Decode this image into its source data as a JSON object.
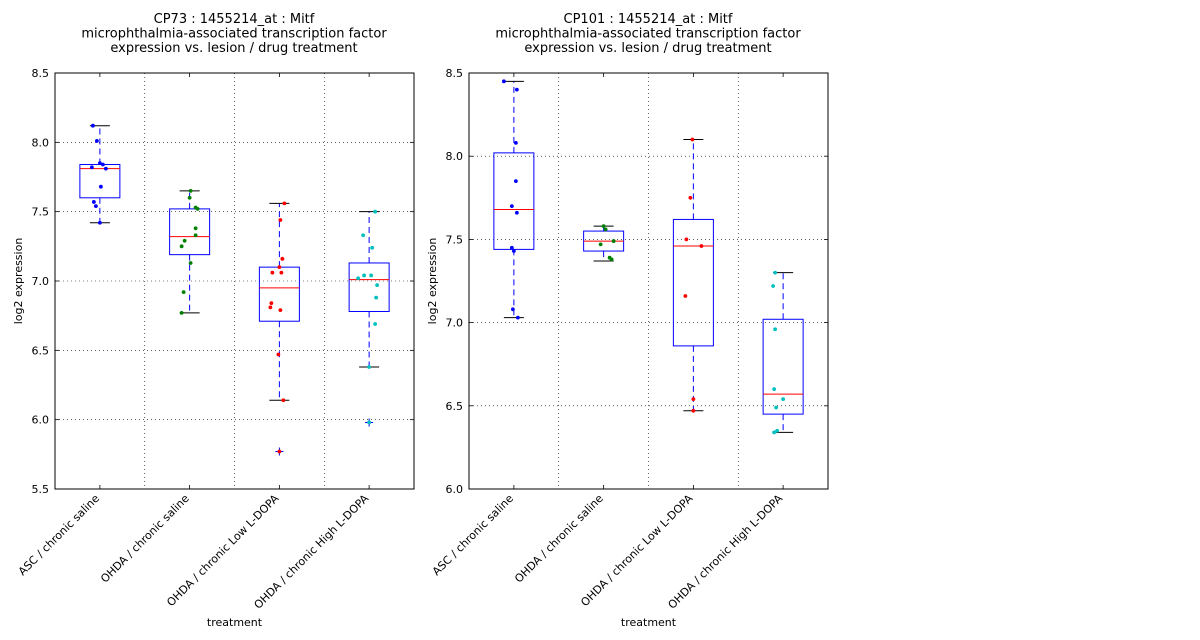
{
  "chart_data": [
    {
      "type": "box",
      "title_lines": [
        "CP73 : 1455214_at : Mitf",
        "microphthalmia-associated transcription factor",
        "expression vs. lesion / drug treatment"
      ],
      "xlabel": "treatment",
      "ylabel": "log2 expression",
      "ylim": [
        5.5,
        8.5
      ],
      "yticks": [
        "5.5",
        "6.0",
        "6.5",
        "7.0",
        "7.5",
        "8.0",
        "8.5"
      ],
      "grid": true,
      "categories": [
        "ASC / chronic saline",
        "OHDA / chronic saline",
        "OHDA / chronic Low L-DOPA",
        "OHDA / chronic High L-DOPA"
      ],
      "series": [
        {
          "color": "#0000ff",
          "box": {
            "whisker_low": 7.42,
            "q1": 7.6,
            "median": 7.81,
            "q3": 7.84,
            "whisker_high": 8.12
          },
          "outliers": [],
          "points": [
            8.12,
            8.01,
            7.85,
            7.84,
            7.82,
            7.81,
            7.68,
            7.57,
            7.54,
            7.42
          ]
        },
        {
          "color": "#008000",
          "box": {
            "whisker_low": 6.77,
            "q1": 7.19,
            "median": 7.32,
            "q3": 7.52,
            "whisker_high": 7.65
          },
          "outliers": [],
          "points": [
            7.65,
            7.6,
            7.53,
            7.52,
            7.38,
            7.33,
            7.29,
            7.25,
            7.13,
            6.92,
            6.77
          ]
        },
        {
          "color": "#ff0000",
          "box": {
            "whisker_low": 6.14,
            "q1": 6.71,
            "median": 6.95,
            "q3": 7.1,
            "whisker_high": 7.56
          },
          "outliers": [
            5.77
          ],
          "points": [
            7.56,
            7.44,
            7.16,
            7.1,
            7.06,
            7.06,
            6.84,
            6.81,
            6.79,
            6.47,
            6.14,
            5.77
          ]
        },
        {
          "color": "#00bfbf",
          "box": {
            "whisker_low": 6.38,
            "q1": 6.78,
            "median": 7.01,
            "q3": 7.13,
            "whisker_high": 7.5
          },
          "outliers": [
            5.98
          ],
          "points": [
            7.5,
            7.33,
            7.24,
            7.04,
            7.04,
            7.02,
            6.97,
            6.88,
            6.69,
            6.38,
            5.98
          ]
        }
      ]
    },
    {
      "type": "box",
      "title_lines": [
        "CP101 : 1455214_at : Mitf",
        "microphthalmia-associated transcription factor",
        "expression vs. lesion / drug treatment"
      ],
      "xlabel": "treatment",
      "ylabel": "log2 expression",
      "ylim": [
        6.0,
        8.5
      ],
      "yticks": [
        "6.0",
        "6.5",
        "7.0",
        "7.5",
        "8.0",
        "8.5"
      ],
      "grid": true,
      "categories": [
        "ASC / chronic saline",
        "OHDA / chronic saline",
        "OHDA / chronic Low L-DOPA",
        "OHDA / chronic High L-DOPA"
      ],
      "series": [
        {
          "color": "#0000ff",
          "box": {
            "whisker_low": 7.03,
            "q1": 7.44,
            "median": 7.68,
            "q3": 8.02,
            "whisker_high": 8.45
          },
          "outliers": [],
          "points": [
            8.45,
            8.4,
            8.08,
            7.85,
            7.7,
            7.66,
            7.45,
            7.43,
            7.08,
            7.03
          ]
        },
        {
          "color": "#008000",
          "box": {
            "whisker_low": 7.37,
            "q1": 7.43,
            "median": 7.49,
            "q3": 7.55,
            "whisker_high": 7.58
          },
          "outliers": [],
          "points": [
            7.58,
            7.56,
            7.49,
            7.47,
            7.39,
            7.38
          ]
        },
        {
          "color": "#ff0000",
          "box": {
            "whisker_low": 6.47,
            "q1": 6.86,
            "median": 7.46,
            "q3": 7.62,
            "whisker_high": 8.1
          },
          "outliers": [],
          "points": [
            8.1,
            7.75,
            7.5,
            7.46,
            7.16,
            6.54,
            6.47
          ]
        },
        {
          "color": "#00bfbf",
          "box": {
            "whisker_low": 6.34,
            "q1": 6.45,
            "median": 6.57,
            "q3": 7.02,
            "whisker_high": 7.3
          },
          "outliers": [],
          "points": [
            7.3,
            7.22,
            6.96,
            6.6,
            6.54,
            6.49,
            6.35,
            6.34
          ]
        }
      ]
    }
  ]
}
